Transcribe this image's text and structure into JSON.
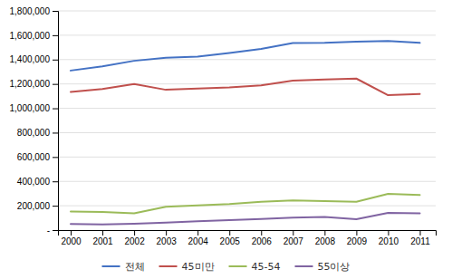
{
  "chart_data": {
    "type": "line",
    "x": [
      2000,
      2001,
      2002,
      2003,
      2004,
      2005,
      2006,
      2007,
      2008,
      2009,
      2010,
      2011
    ],
    "series": [
      {
        "name": "전체",
        "color": "#4472C4",
        "values": [
          1310000,
          1345000,
          1390000,
          1415000,
          1425000,
          1455000,
          1488000,
          1536000,
          1538000,
          1548000,
          1552000,
          1537000
        ]
      },
      {
        "name": "45미만",
        "color": "#C0504D",
        "values": [
          1135000,
          1158000,
          1200000,
          1152000,
          1163000,
          1172000,
          1188000,
          1228000,
          1237000,
          1244000,
          1108000,
          1118000
        ]
      },
      {
        "name": "45-54",
        "color": "#9BBB59",
        "values": [
          153000,
          148000,
          138000,
          192000,
          202000,
          213000,
          233000,
          243000,
          238000,
          232000,
          298000,
          288000
        ]
      },
      {
        "name": "55이상",
        "color": "#8064A2",
        "values": [
          50000,
          46000,
          52000,
          62000,
          72000,
          82000,
          92000,
          102000,
          107000,
          90000,
          142000,
          137000
        ]
      }
    ],
    "xlim": [
      1999.6,
      2011.5
    ],
    "xticks": [
      2000,
      2001,
      2002,
      2003,
      2004,
      2005,
      2006,
      2007,
      2008,
      2009,
      2010,
      2011
    ],
    "ylim": [
      0,
      1800000
    ],
    "yticks": [
      {
        "value": 0,
        "label": "-"
      },
      {
        "value": 200000,
        "label": "200,000"
      },
      {
        "value": 400000,
        "label": "400,000"
      },
      {
        "value": 600000,
        "label": "600,000"
      },
      {
        "value": 800000,
        "label": "800,000"
      },
      {
        "value": 1000000,
        "label": "1,000,000"
      },
      {
        "value": 1200000,
        "label": "1,200,000"
      },
      {
        "value": 1400000,
        "label": "1,400,000"
      },
      {
        "value": 1600000,
        "label": "1,600,000"
      },
      {
        "value": 1800000,
        "label": "1,800,000"
      }
    ],
    "grid": true,
    "legend": "bottom"
  }
}
